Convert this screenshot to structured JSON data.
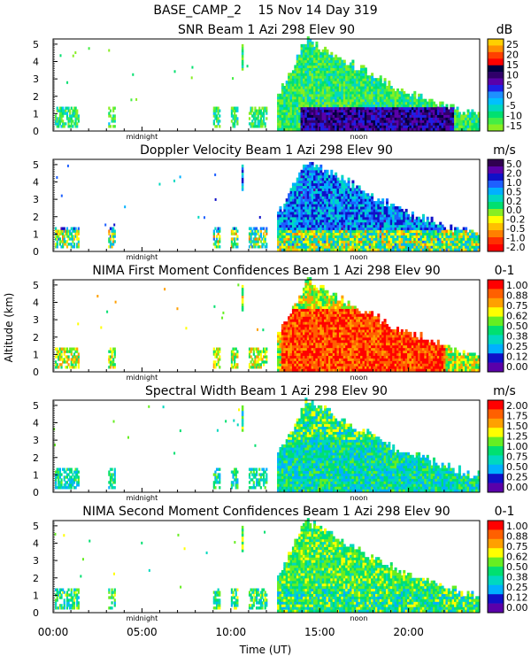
{
  "header": {
    "site": "BASE_CAMP_2",
    "date": "15 Nov 14 Day 319"
  },
  "axes": {
    "ylabel": "Altitude (km)",
    "xlabel": "Time (UT)",
    "x_ticks": [
      "00:00",
      "05:00",
      "10:00",
      "15:00",
      "20:00"
    ],
    "x_tick_hours": [
      0,
      5,
      10,
      15,
      20
    ],
    "x_range_hours": [
      0,
      24
    ],
    "y_ticks": [
      "0",
      "1",
      "2",
      "3",
      "4",
      "5"
    ],
    "y_range_km": [
      0,
      5.3
    ],
    "midnight_label": "midnight",
    "noon_label": "noon",
    "midnight_hour": 5.0,
    "noon_hour": 17.2
  },
  "chart_data": [
    {
      "type": "heatmap",
      "title": "SNR Beam 1 Azi 298 Elev 90",
      "unit": "dB",
      "colorbar_labels": [
        "25",
        "20",
        "15",
        "10",
        "5",
        "0",
        "-5",
        "-10",
        "-15"
      ],
      "colorbar_colors": [
        "#ffd000",
        "#ff9000",
        "#ff4000",
        "#ff0000",
        "#000040",
        "#30006a",
        "#5a00aa",
        "#1f1fe6",
        "#1e90ff",
        "#00c0ff",
        "#00d8c0",
        "#00e070",
        "#44ee44",
        "#88ee22"
      ]
    },
    {
      "type": "heatmap",
      "title": "Doppler Velocity Beam 1 Azi 298 Elev 90",
      "unit": "m/s",
      "colorbar_labels": [
        "5.0",
        "2.0",
        "1.0",
        "0.5",
        "0.2",
        "0.0",
        "-0.2",
        "-0.5",
        "-1.0",
        "-2.0"
      ],
      "colorbar_colors": [
        "#300050",
        "#5a00aa",
        "#1010c8",
        "#1e60ff",
        "#00b0ff",
        "#00d8c0",
        "#00e070",
        "#88ee22",
        "#ffff00",
        "#ffc000",
        "#ff8000",
        "#ff3000",
        "#ff0000"
      ]
    },
    {
      "type": "heatmap",
      "title": "NIMA First Moment Confidences Beam 1 Azi 298 Elev 90",
      "unit": "0-1",
      "colorbar_labels": [
        "1.00",
        "0.88",
        "0.75",
        "0.62",
        "0.50",
        "0.38",
        "0.25",
        "0.12",
        "0.00"
      ],
      "colorbar_colors": [
        "#ff0000",
        "#ff6000",
        "#ffa000",
        "#ffff00",
        "#66ee22",
        "#00e070",
        "#00d8c0",
        "#00b0ff",
        "#1010c8",
        "#5a00aa"
      ]
    },
    {
      "type": "heatmap",
      "title": "Spectral Width Beam 1 Azi 298 Elev 90",
      "unit": "m/s",
      "colorbar_labels": [
        "2.00",
        "1.75",
        "1.50",
        "1.25",
        "1.00",
        "0.75",
        "0.50",
        "0.25",
        "0.00"
      ],
      "colorbar_colors": [
        "#ff0000",
        "#ff6000",
        "#ffa000",
        "#ffff00",
        "#66ee22",
        "#00e070",
        "#00d8c0",
        "#00b0ff",
        "#1010c8",
        "#5a00aa"
      ]
    },
    {
      "type": "heatmap",
      "title": "NIMA Second Moment Confidences Beam 1 Azi 298 Elev 90",
      "unit": "0-1",
      "colorbar_labels": [
        "1.00",
        "0.88",
        "0.75",
        "0.62",
        "0.50",
        "0.38",
        "0.25",
        "0.12",
        "0.00"
      ],
      "colorbar_colors": [
        "#ff0000",
        "#ff6000",
        "#ffa000",
        "#ffff00",
        "#66ee22",
        "#00e070",
        "#00d8c0",
        "#00b0ff",
        "#1010c8",
        "#5a00aa"
      ]
    }
  ]
}
